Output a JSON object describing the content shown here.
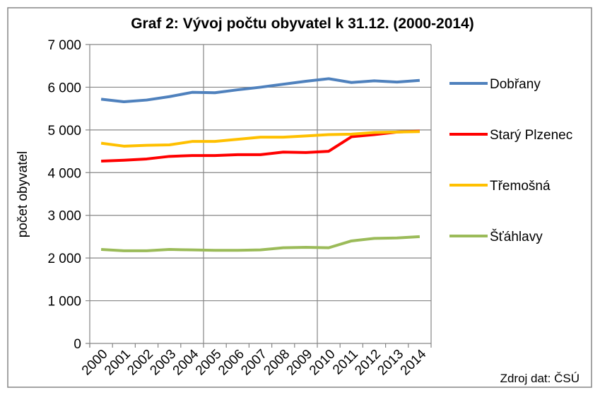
{
  "chart_data": {
    "type": "line",
    "title": "Graf 2: Vývoj počtu obyvatel k 31.12. (2000-2014)",
    "y_label": "počet obyvatel",
    "source": "Zdroj dat: ČSÚ",
    "categories": [
      "2000",
      "2001",
      "2002",
      "2003",
      "2004",
      "2005",
      "2006",
      "2007",
      "2008",
      "2009",
      "2010",
      "2011",
      "2012",
      "2013",
      "2014"
    ],
    "series": [
      {
        "name": "Dobřany",
        "color": "#4f81bd",
        "values": [
          5720,
          5660,
          5700,
          5780,
          5880,
          5870,
          5940,
          6000,
          6070,
          6140,
          6200,
          6110,
          6150,
          6120,
          6160
        ]
      },
      {
        "name": "Starý Plzenec",
        "color": "#ff0000",
        "values": [
          4270,
          4290,
          4320,
          4380,
          4400,
          4400,
          4420,
          4420,
          4480,
          4470,
          4500,
          4840,
          4890,
          4950,
          4970
        ]
      },
      {
        "name": "Třemošná",
        "color": "#ffc000",
        "values": [
          4690,
          4620,
          4640,
          4650,
          4730,
          4730,
          4780,
          4830,
          4830,
          4860,
          4890,
          4900,
          4940,
          4950,
          4960
        ]
      },
      {
        "name": "Šťáhlavy",
        "color": "#9bbb59",
        "values": [
          2200,
          2170,
          2170,
          2200,
          2190,
          2180,
          2180,
          2190,
          2240,
          2250,
          2240,
          2400,
          2460,
          2470,
          2500
        ]
      }
    ],
    "ylim": [
      0,
      7000
    ],
    "yticks": [
      0,
      {
        "value": 1000,
        "label": "1 000"
      },
      {
        "value": 2000,
        "label": "2 000"
      },
      {
        "value": 3000,
        "label": "3 000"
      },
      {
        "value": 4000,
        "label": "4 000"
      },
      {
        "value": 5000,
        "label": "5 000"
      },
      {
        "value": 6000,
        "label": "6 000"
      },
      {
        "value": 7000,
        "label": "7 000"
      }
    ],
    "grid": true
  }
}
